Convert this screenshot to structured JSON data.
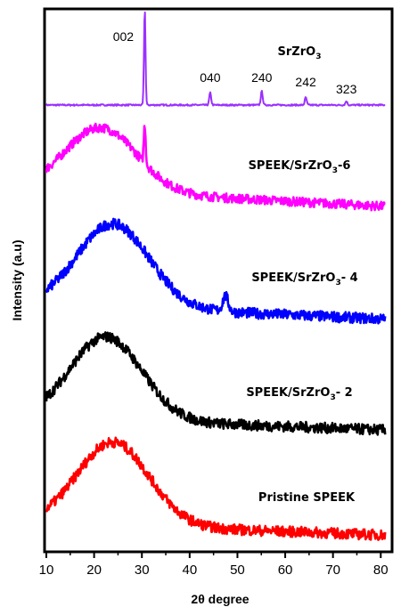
{
  "chart_data": {
    "type": "line",
    "title": "",
    "xlabel": "2θ degree",
    "ylabel": "Intensity (a.u)",
    "xlim": [
      10,
      82
    ],
    "xticks": [
      "10",
      "20",
      "30",
      "40",
      "50",
      "60",
      "70",
      "80"
    ],
    "y_ticks_shown": false,
    "grid": false,
    "series": [
      {
        "name": "SrZrO",
        "subscript": "3",
        "suffix": "",
        "color": "#9b30ff",
        "baseline": 0.0,
        "noise": 0.005,
        "shape": "crystalline",
        "peaks": [
          {
            "x": 30.6,
            "h": 0.63,
            "w": 0.16
          },
          {
            "x": 44.3,
            "h": 0.08,
            "w": 0.2
          },
          {
            "x": 55.1,
            "h": 0.09,
            "w": 0.2
          },
          {
            "x": 64.3,
            "h": 0.05,
            "w": 0.2
          },
          {
            "x": 72.8,
            "h": 0.025,
            "w": 0.2
          }
        ]
      },
      {
        "name": "SPEEK/SrZrO",
        "subscript": "3",
        "suffix": "-6",
        "color": "#ff00ff",
        "baseline": 1.0,
        "noise": 0.03,
        "shape": "amorphous",
        "hump": {
          "x": 21.5,
          "h": 0.42,
          "w": 7.5
        },
        "tail": -0.12,
        "peaks": [
          {
            "x": 30.6,
            "h": 0.25,
            "w": 0.2
          }
        ]
      },
      {
        "name": "SPEEK/SrZrO",
        "subscript": "3",
        "suffix": "- 4",
        "color": "#0000ff",
        "baseline": 2.0,
        "noise": 0.035,
        "shape": "amorphous",
        "hump": {
          "x": 24.0,
          "h": 0.55,
          "w": 7.5
        },
        "tail": -0.1,
        "peaks": [
          {
            "x": 47.5,
            "h": 0.1,
            "w": 0.6
          }
        ]
      },
      {
        "name": "SPEEK/SrZrO",
        "subscript": "3",
        "suffix": "- 2",
        "color": "#000000",
        "baseline": 3.0,
        "noise": 0.035,
        "shape": "amorphous",
        "hump": {
          "x": 22.5,
          "h": 0.55,
          "w": 7.5
        },
        "tail": -0.08,
        "peaks": []
      },
      {
        "name": "Pristine SPEEK",
        "subscript": "",
        "suffix": "",
        "color": "#ff0000",
        "baseline": 4.0,
        "noise": 0.035,
        "shape": "amorphous",
        "hump": {
          "x": 24.0,
          "h": 0.55,
          "w": 7.5
        },
        "tail": -0.08,
        "peaks": []
      }
    ],
    "annotations": [
      {
        "text": "002",
        "x": 30.6
      },
      {
        "text": "040",
        "x": 44.3
      },
      {
        "text": "240",
        "x": 55.1
      },
      {
        "text": "242",
        "x": 64.3
      },
      {
        "text": "323",
        "x": 72.8
      }
    ]
  }
}
